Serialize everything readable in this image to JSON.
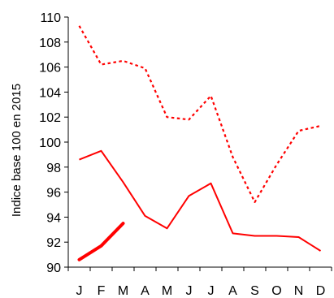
{
  "chart_data": {
    "type": "line",
    "title": "",
    "xlabel": "",
    "ylabel": "Indice base 100 en 2015",
    "categories": [
      "J",
      "F",
      "M",
      "A",
      "M",
      "J",
      "J",
      "A",
      "S",
      "O",
      "N",
      "D"
    ],
    "ylim": [
      90,
      110
    ],
    "yticks": [
      90,
      92,
      94,
      96,
      98,
      100,
      102,
      104,
      106,
      108,
      110
    ],
    "grid": false,
    "legend": "none",
    "series": [
      {
        "style": "dotted",
        "color": "#ff0000",
        "values": [
          109.3,
          106.2,
          106.5,
          105.9,
          102.0,
          101.8,
          103.7,
          98.8,
          95.2,
          98.2,
          100.9,
          101.3
        ]
      },
      {
        "style": "solid",
        "color": "#ff0000",
        "values": [
          98.6,
          99.3,
          96.8,
          94.1,
          93.1,
          95.7,
          96.7,
          92.7,
          92.5,
          92.5,
          92.4,
          91.3
        ]
      },
      {
        "style": "bold",
        "color": "#ff0000",
        "values": [
          90.6,
          91.7,
          93.5,
          null,
          null,
          null,
          null,
          null,
          null,
          null,
          null,
          null
        ]
      }
    ]
  }
}
